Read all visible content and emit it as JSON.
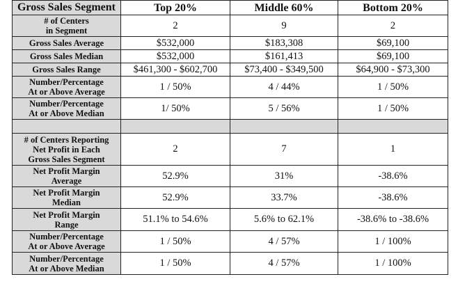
{
  "headers": [
    "Gross Sales Segment",
    "Top 20%",
    "Middle 60%",
    "Bottom 20%"
  ],
  "rows": [
    {
      "label": [
        "# of Centers",
        "in Segment"
      ],
      "values": [
        "2",
        "9",
        "2"
      ]
    },
    {
      "label": [
        "Gross Sales Average"
      ],
      "values": [
        "$532,000",
        "$183,308",
        "$69,100"
      ]
    },
    {
      "label": [
        "Gross Sales Median"
      ],
      "values": [
        "$532,000",
        "$161,413",
        "$69,100"
      ]
    },
    {
      "label": [
        "Gross Sales Range"
      ],
      "values": [
        "$461,300 - $602,700",
        "$73,400 - $349,500",
        "$64,900 - $73,300"
      ]
    },
    {
      "label": [
        "Number/Percentage",
        "At or Above Average"
      ],
      "values": [
        "1 / 50%",
        "4 / 44%",
        "1 / 50%"
      ]
    },
    {
      "label": [
        "Number/Percentage",
        "At or Above Median"
      ],
      "values": [
        "1/ 50%",
        "5 / 56%",
        "1 / 50%"
      ]
    },
    {
      "gap": true
    },
    {
      "label": [
        "# of Centers Reporting",
        "Net Profit in Each",
        "Gross Sales Segment"
      ],
      "values": [
        "2",
        "7",
        "1"
      ]
    },
    {
      "label": [
        "Net Profit Margin",
        "Average"
      ],
      "values": [
        "52.9%",
        "31%",
        "-38.6%"
      ]
    },
    {
      "label": [
        "Net Profit Margin",
        "Median"
      ],
      "values": [
        "52.9%",
        "33.7%",
        "-38.6%"
      ]
    },
    {
      "label": [
        "Net Profit Margin",
        "Range"
      ],
      "values": [
        "51.1% to 54.6%",
        "5.6% to 62.1%",
        "-38.6% to -38.6%"
      ]
    },
    {
      "label": [
        "Number/Percentage",
        "At or Above Average"
      ],
      "values": [
        "1 / 50%",
        "4 / 57%",
        "1 / 100%"
      ]
    },
    {
      "label": [
        "Number/Percentage",
        "At or Above Median"
      ],
      "values": [
        "1 / 50%",
        "4 / 57%",
        "1 / 100%"
      ]
    }
  ],
  "colors": {
    "label_bg": "#d9d9d9",
    "border": "#222222"
  }
}
